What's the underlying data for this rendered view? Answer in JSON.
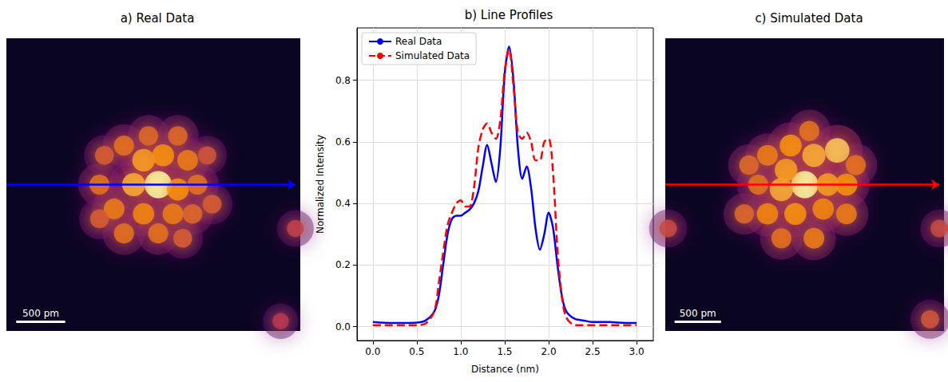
{
  "chart_data": [
    {
      "type": "image",
      "title": "a) Real Data",
      "xlim": [
        0,
        3
      ],
      "ylim": [
        0,
        3
      ],
      "tick_labels": false,
      "spots": [
        [
          1.55,
          1.5,
          1.0
        ],
        [
          1.3,
          1.5,
          0.7
        ],
        [
          1.75,
          1.55,
          0.6
        ],
        [
          1.95,
          1.5,
          0.45
        ],
        [
          0.95,
          1.5,
          0.45
        ],
        [
          1.4,
          1.25,
          0.65
        ],
        [
          1.6,
          1.2,
          0.6
        ],
        [
          1.85,
          1.25,
          0.5
        ],
        [
          1.2,
          1.1,
          0.45
        ],
        [
          1.45,
          1.0,
          0.4
        ],
        [
          1.75,
          1.0,
          0.4
        ],
        [
          1.0,
          1.2,
          0.35
        ],
        [
          1.1,
          1.75,
          0.5
        ],
        [
          1.4,
          1.8,
          0.55
        ],
        [
          1.7,
          1.8,
          0.5
        ],
        [
          1.9,
          1.8,
          0.4
        ],
        [
          1.2,
          2.0,
          0.45
        ],
        [
          1.55,
          2.0,
          0.45
        ],
        [
          1.8,
          2.05,
          0.35
        ],
        [
          0.95,
          1.85,
          0.35
        ],
        [
          2.05,
          1.2,
          0.3
        ],
        [
          2.1,
          1.7,
          0.35
        ],
        [
          2.95,
          1.95,
          0.2
        ],
        [
          2.8,
          2.9,
          0.15
        ]
      ],
      "scale_bar": {
        "label": "500 pm",
        "length": 0.5
      },
      "profile_line": {
        "from": [
          0,
          1.5
        ],
        "to": [
          2.95,
          1.5
        ],
        "color": "#0000ff"
      }
    },
    {
      "type": "line",
      "title": "b) Line Profiles",
      "x_label": "Distance (nm)",
      "y_label": "Normalized Intensity",
      "x": [
        0,
        0.1,
        0.2,
        0.3,
        0.4,
        0.5,
        0.6,
        0.7,
        0.75,
        0.8,
        0.85,
        0.9,
        0.95,
        1.0,
        1.05,
        1.1,
        1.15,
        1.2,
        1.25,
        1.3,
        1.35,
        1.4,
        1.45,
        1.5,
        1.55,
        1.6,
        1.65,
        1.7,
        1.75,
        1.8,
        1.85,
        1.9,
        1.95,
        2.0,
        2.05,
        2.1,
        2.15,
        2.2,
        2.3,
        2.4,
        2.5,
        2.6,
        2.7,
        2.8,
        2.9,
        3.0
      ],
      "series": [
        {
          "name": "Real Data",
          "color": "#0000ff",
          "line_style": "solid",
          "values": [
            0.015,
            0.013,
            0.012,
            0.012,
            0.012,
            0.013,
            0.02,
            0.05,
            0.1,
            0.2,
            0.3,
            0.35,
            0.36,
            0.36,
            0.37,
            0.38,
            0.4,
            0.44,
            0.52,
            0.59,
            0.53,
            0.47,
            0.58,
            0.82,
            0.91,
            0.8,
            0.58,
            0.48,
            0.52,
            0.45,
            0.32,
            0.25,
            0.3,
            0.37,
            0.32,
            0.2,
            0.1,
            0.05,
            0.025,
            0.02,
            0.015,
            0.015,
            0.015,
            0.013,
            0.012,
            0.012
          ]
        },
        {
          "name": "Simulated Data",
          "color": "#ff0000",
          "line_style": "dashed",
          "values": [
            0.005,
            0.005,
            0.005,
            0.005,
            0.005,
            0.005,
            0.01,
            0.05,
            0.14,
            0.24,
            0.33,
            0.37,
            0.4,
            0.41,
            0.39,
            0.39,
            0.45,
            0.58,
            0.64,
            0.66,
            0.63,
            0.61,
            0.67,
            0.83,
            0.9,
            0.78,
            0.63,
            0.61,
            0.63,
            0.6,
            0.54,
            0.54,
            0.6,
            0.61,
            0.5,
            0.25,
            0.1,
            0.03,
            0.005,
            0.005,
            0.005,
            0.005,
            0.005,
            0.005,
            0.005,
            0.005
          ]
        }
      ],
      "xlim": [
        -0.18,
        3.19
      ],
      "ylim": [
        -0.045,
        0.97
      ],
      "xticks": [
        {
          "value": 0,
          "label": "0.0"
        },
        {
          "value": 0.5,
          "label": "0.5"
        },
        {
          "value": 1,
          "label": "1.0"
        },
        {
          "value": 1.5,
          "label": "1.5"
        },
        {
          "value": 2,
          "label": "2.0"
        },
        {
          "value": 2.5,
          "label": "2.5"
        },
        {
          "value": 3,
          "label": "3.0"
        }
      ],
      "yticks": [
        {
          "value": 0,
          "label": "0.0"
        },
        {
          "value": 0.2,
          "label": "0.2"
        },
        {
          "value": 0.4,
          "label": "0.4"
        },
        {
          "value": 0.6,
          "label": "0.6"
        },
        {
          "value": 0.8,
          "label": "0.8"
        }
      ],
      "grid": true,
      "legend": "upper left"
    },
    {
      "type": "image",
      "title": "c) Simulated Data",
      "xlim": [
        0,
        3
      ],
      "ylim": [
        0,
        3
      ],
      "tick_labels": false,
      "spots": [
        [
          1.5,
          1.5,
          1.0
        ],
        [
          1.25,
          1.55,
          0.7
        ],
        [
          1.3,
          1.35,
          0.65
        ],
        [
          1.75,
          1.5,
          0.65
        ],
        [
          1.95,
          1.5,
          0.6
        ],
        [
          1.0,
          1.5,
          0.45
        ],
        [
          1.85,
          1.15,
          0.8
        ],
        [
          1.6,
          1.2,
          0.7
        ],
        [
          1.35,
          1.1,
          0.6
        ],
        [
          1.1,
          1.2,
          0.5
        ],
        [
          0.9,
          1.3,
          0.4
        ],
        [
          1.55,
          0.95,
          0.45
        ],
        [
          1.1,
          1.8,
          0.55
        ],
        [
          1.4,
          1.8,
          0.6
        ],
        [
          1.7,
          1.75,
          0.55
        ],
        [
          1.95,
          1.8,
          0.5
        ],
        [
          1.25,
          2.05,
          0.45
        ],
        [
          1.6,
          2.05,
          0.5
        ],
        [
          0.85,
          1.8,
          0.4
        ],
        [
          2.05,
          1.3,
          0.45
        ],
        [
          0.03,
          1.95,
          0.25
        ],
        [
          2.95,
          1.95,
          0.25
        ],
        [
          2.85,
          2.88,
          0.3
        ]
      ],
      "scale_bar": {
        "label": "500 pm",
        "length": 0.5
      },
      "profile_line": {
        "from": [
          0,
          1.5
        ],
        "to": [
          2.95,
          1.5
        ],
        "color": "#ff0000"
      }
    }
  ]
}
